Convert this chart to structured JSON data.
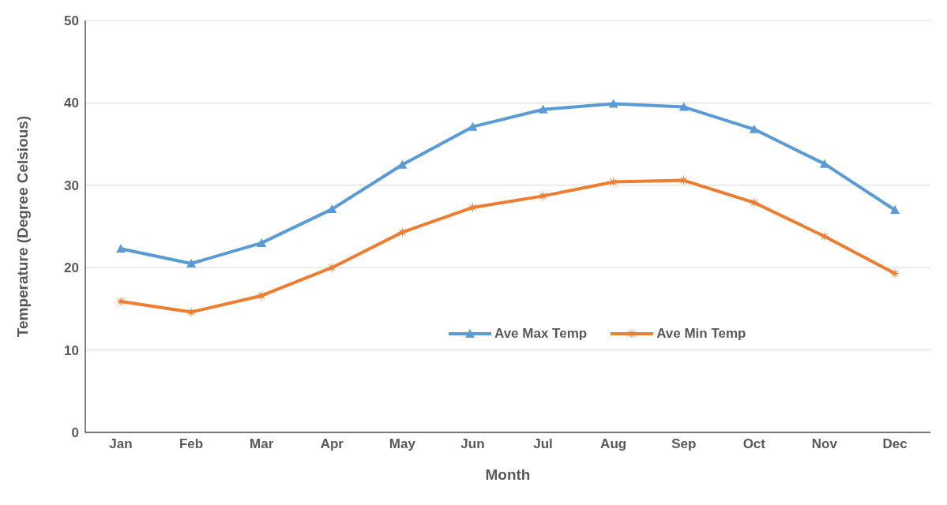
{
  "chart_data": {
    "type": "line",
    "xlabel": "Month",
    "ylabel": "Temperature (Degree Celsious)",
    "categories": [
      "Jan",
      "Feb",
      "Mar",
      "Apr",
      "May",
      "Jun",
      "Jul",
      "Aug",
      "Sep",
      "Oct",
      "Nov",
      "Dec"
    ],
    "series": [
      {
        "name": "Ave Max Temp",
        "color": "#5b9bd5",
        "marker": "triangle",
        "values": [
          22.3,
          20.5,
          23.0,
          27.1,
          32.5,
          37.1,
          39.2,
          39.9,
          39.5,
          36.8,
          32.6,
          27.0
        ]
      },
      {
        "name": "Ave Min Temp",
        "color": "#ed7d31",
        "marker": "star",
        "values": [
          15.9,
          14.6,
          16.6,
          20.0,
          24.3,
          27.3,
          28.7,
          30.4,
          30.6,
          27.9,
          23.8,
          19.3
        ]
      }
    ],
    "ylim": [
      0,
      50
    ],
    "yticks": [
      0,
      10,
      20,
      30,
      40,
      50
    ],
    "grid": "y",
    "legend": "center",
    "line_style": "solid"
  }
}
